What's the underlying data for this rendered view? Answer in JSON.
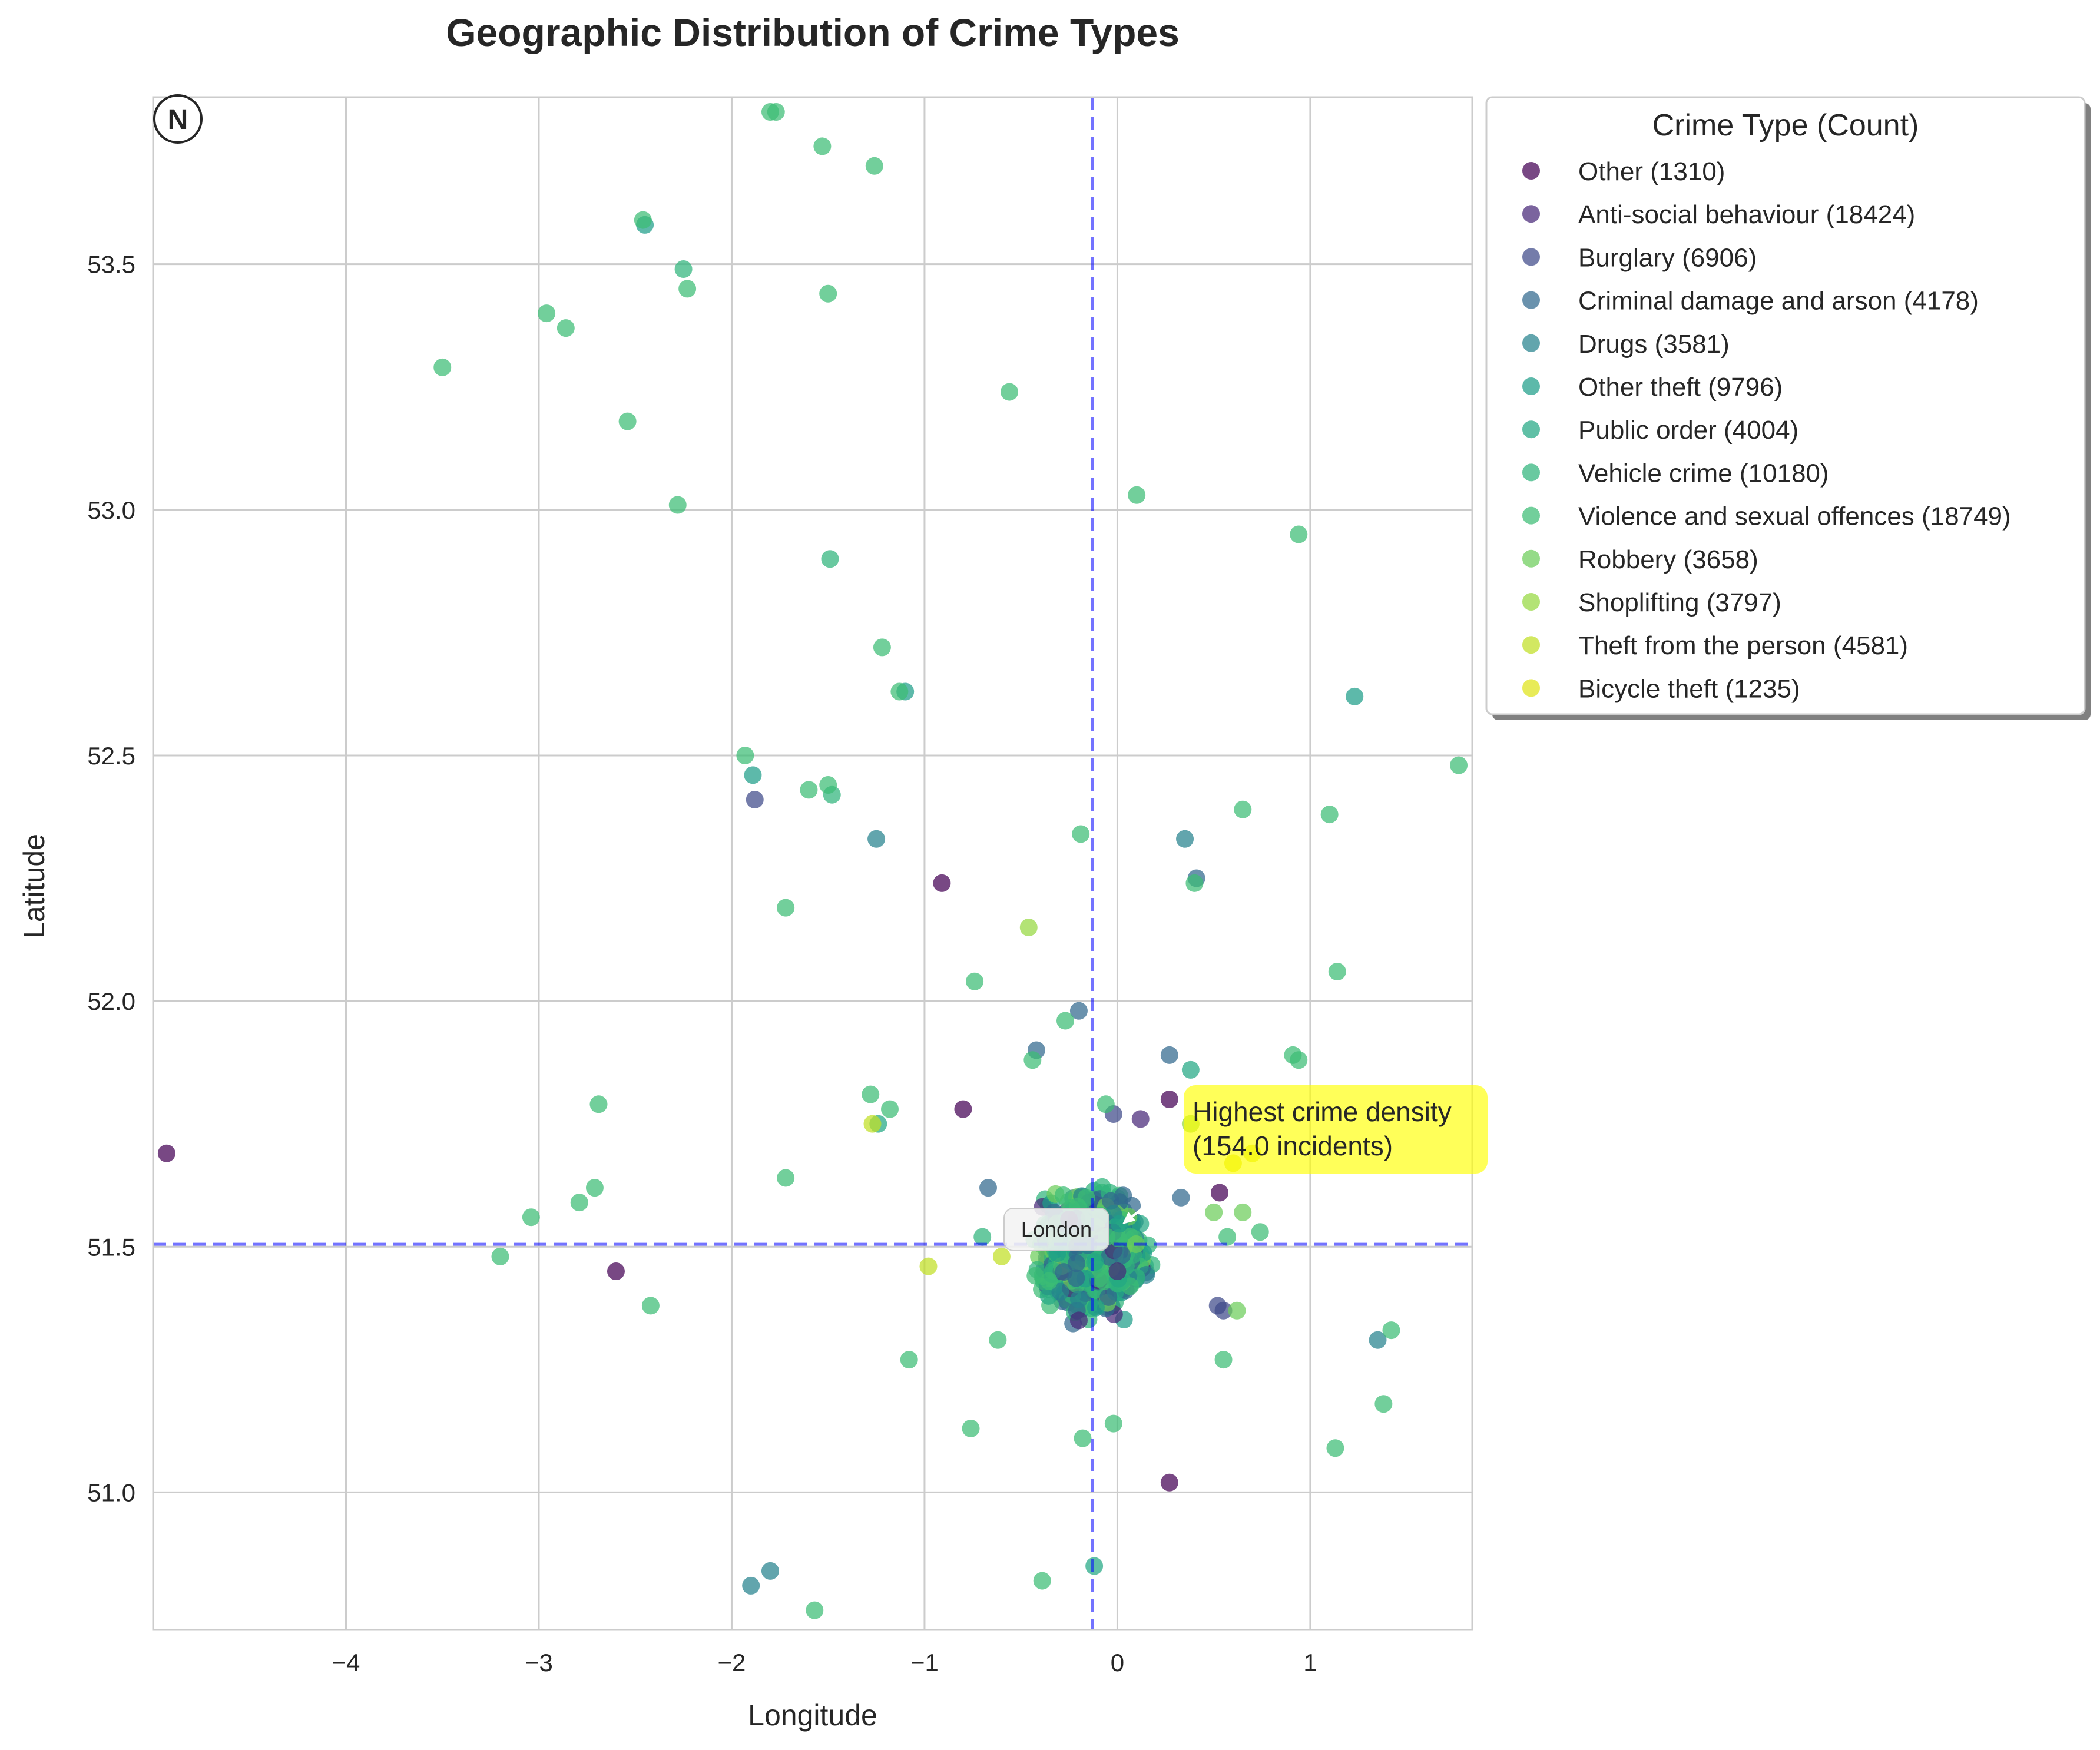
{
  "chart_data": {
    "type": "scatter",
    "title": "Geographic Distribution of Crime Types",
    "xlabel": "Longitude",
    "ylabel": "Latitude",
    "xlim": [
      -5.0,
      1.84
    ],
    "ylim": [
      50.72,
      53.84
    ],
    "xticks": [
      -4,
      -3,
      -2,
      -1,
      0,
      1
    ],
    "xtick_labels": [
      "−4",
      "−3",
      "−2",
      "−1",
      "0",
      "1"
    ],
    "yticks": [
      51.0,
      51.5,
      52.0,
      52.5,
      53.0,
      53.5
    ],
    "ytick_labels": [
      "51.0",
      "51.5",
      "52.0",
      "52.5",
      "53.0",
      "53.5"
    ],
    "grid": true,
    "legend_title": "Crime Type (Count)",
    "legend_position": "outside-right-top",
    "compass_label": "N",
    "reference_lines": {
      "longitude": -0.13,
      "latitude": 51.505
    },
    "reference_label": "London",
    "annotation": {
      "text_line1": "Highest crime density",
      "text_line2": "(154.0 incidents)",
      "x": 0.02,
      "y": 51.55
    },
    "cluster": {
      "center_x": -0.13,
      "center_y": 51.49,
      "spread_x": 0.36,
      "spread_y": 0.16
    },
    "series": [
      {
        "name": "Other (1310)",
        "color": "#440154",
        "points": [
          [
            -4.93,
            51.69
          ],
          [
            -2.6,
            51.45
          ],
          [
            -0.91,
            52.24
          ],
          [
            -0.8,
            51.78
          ],
          [
            0.27,
            51.8
          ],
          [
            0.53,
            51.61
          ],
          [
            0.27,
            51.02
          ]
        ]
      },
      {
        "name": "Anti-social behaviour (18424)",
        "color": "#482878",
        "points": [
          [
            0.12,
            51.76
          ],
          [
            -0.2,
            51.35
          ],
          [
            0.0,
            51.45
          ]
        ]
      },
      {
        "name": "Burglary (6906)",
        "color": "#3e4989",
        "points": [
          [
            -1.88,
            52.41
          ],
          [
            -0.02,
            51.77
          ],
          [
            0.52,
            51.38
          ],
          [
            0.55,
            51.37
          ]
        ]
      },
      {
        "name": "Criminal damage and arson (4178)",
        "color": "#31688e",
        "points": [
          [
            -0.2,
            51.98
          ],
          [
            -0.42,
            51.9
          ],
          [
            0.41,
            52.25
          ],
          [
            0.27,
            51.89
          ],
          [
            0.33,
            51.6
          ],
          [
            -0.67,
            51.62
          ]
        ]
      },
      {
        "name": "Drugs (3581)",
        "color": "#26828e",
        "points": [
          [
            -1.25,
            52.33
          ],
          [
            1.35,
            51.31
          ],
          [
            -1.9,
            50.81
          ],
          [
            -1.8,
            50.84
          ],
          [
            0.35,
            52.33
          ]
        ]
      },
      {
        "name": "Other theft (9796)",
        "color": "#1f9e89",
        "points": [
          [
            1.23,
            52.62
          ],
          [
            -2.45,
            53.58
          ],
          [
            -1.89,
            52.46
          ],
          [
            -1.1,
            52.63
          ]
        ]
      },
      {
        "name": "Public order (4004)",
        "color": "#22a884",
        "points": [
          [
            -1.24,
            51.75
          ],
          [
            -0.12,
            50.85
          ],
          [
            0.38,
            51.86
          ]
        ]
      },
      {
        "name": "Vehicle crime (10180)",
        "color": "#2fb47c",
        "points": [
          [
            -2.25,
            53.49
          ],
          [
            -1.49,
            52.9
          ],
          [
            -1.48,
            52.42
          ],
          [
            -0.7,
            51.52
          ]
        ]
      },
      {
        "name": "Violence and sexual offences (18749)",
        "color": "#3cbc75",
        "points": [
          [
            -1.8,
            53.81
          ],
          [
            -1.77,
            53.81
          ],
          [
            -1.53,
            53.74
          ],
          [
            -1.26,
            53.7
          ],
          [
            -2.46,
            53.59
          ],
          [
            -2.23,
            53.45
          ],
          [
            -2.96,
            53.4
          ],
          [
            -2.86,
            53.37
          ],
          [
            -3.5,
            53.29
          ],
          [
            -1.5,
            53.44
          ],
          [
            -2.54,
            53.18
          ],
          [
            -0.56,
            53.24
          ],
          [
            -2.28,
            53.01
          ],
          [
            0.1,
            53.03
          ],
          [
            0.94,
            52.95
          ],
          [
            -1.22,
            52.72
          ],
          [
            -1.13,
            52.63
          ],
          [
            -1.93,
            52.5
          ],
          [
            -1.6,
            52.43
          ],
          [
            -1.5,
            52.44
          ],
          [
            1.77,
            52.48
          ],
          [
            0.65,
            52.39
          ],
          [
            1.1,
            52.38
          ],
          [
            -0.19,
            52.34
          ],
          [
            -1.72,
            52.19
          ],
          [
            0.4,
            52.24
          ],
          [
            -0.74,
            52.04
          ],
          [
            1.14,
            52.06
          ],
          [
            -0.27,
            51.96
          ],
          [
            -0.44,
            51.88
          ],
          [
            0.91,
            51.89
          ],
          [
            0.94,
            51.88
          ],
          [
            -2.69,
            51.79
          ],
          [
            -1.28,
            51.81
          ],
          [
            -1.18,
            51.78
          ],
          [
            -0.06,
            51.79
          ],
          [
            -2.71,
            51.62
          ],
          [
            -2.79,
            51.59
          ],
          [
            -1.72,
            51.64
          ],
          [
            -3.04,
            51.56
          ],
          [
            -3.2,
            51.48
          ],
          [
            -2.42,
            51.38
          ],
          [
            -0.62,
            51.31
          ],
          [
            0.57,
            51.52
          ],
          [
            0.74,
            51.53
          ],
          [
            0.55,
            51.27
          ],
          [
            -1.08,
            51.27
          ],
          [
            -0.76,
            51.13
          ],
          [
            -0.18,
            51.11
          ],
          [
            -0.02,
            51.14
          ],
          [
            1.42,
            51.33
          ],
          [
            1.38,
            51.18
          ],
          [
            1.13,
            51.09
          ],
          [
            -0.39,
            50.82
          ],
          [
            -1.57,
            50.76
          ]
        ]
      },
      {
        "name": "Robbery (3658)",
        "color": "#6ccd5a",
        "points": [
          [
            0.5,
            51.57
          ],
          [
            0.65,
            51.57
          ],
          [
            0.62,
            51.37
          ]
        ]
      },
      {
        "name": "Shoplifting (3797)",
        "color": "#95d840",
        "points": [
          [
            -0.46,
            52.15
          ],
          [
            0.38,
            51.75
          ]
        ]
      },
      {
        "name": "Theft from the person (4581)",
        "color": "#c1df24",
        "points": [
          [
            -1.27,
            51.75
          ],
          [
            -0.98,
            51.46
          ],
          [
            -0.6,
            51.48
          ]
        ]
      },
      {
        "name": "Bicycle theft (1235)",
        "color": "#dfe318",
        "points": [
          [
            0.6,
            51.67
          ],
          [
            0.7,
            51.69
          ]
        ]
      }
    ]
  }
}
